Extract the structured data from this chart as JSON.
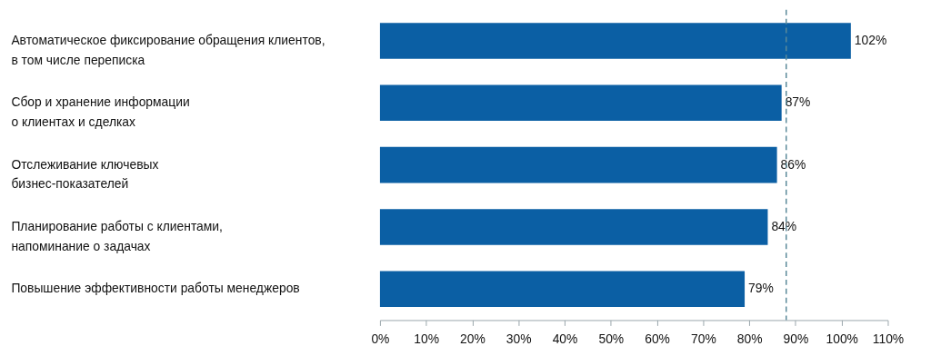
{
  "chart_data": {
    "type": "bar",
    "orientation": "horizontal",
    "categories": [
      "Автоматическое фиксирование обращения клиентов,\n в том числе переписка",
      "Сбор и хранение информации\nо клиентах и сделках",
      "Отслеживание ключевых\nбизнес-показателей",
      "Планирование работы с клиентами,\nнапоминание о задачах",
      "Повышение эффективности работы менеджеров"
    ],
    "values": [
      102,
      87,
      86,
      84,
      79
    ],
    "value_labels": [
      "102%",
      "87%",
      "86%",
      "84%",
      "79%"
    ],
    "color": "#0b5fa4",
    "xlim": [
      0,
      110
    ],
    "xticks": [
      {
        "value": 0,
        "label": "0%"
      },
      {
        "value": 10,
        "label": "10%"
      },
      {
        "value": 20,
        "label": "20%"
      },
      {
        "value": 30,
        "label": "30%"
      },
      {
        "value": 40,
        "label": "40%"
      },
      {
        "value": 50,
        "label": "50%"
      },
      {
        "value": 60,
        "label": "60%"
      },
      {
        "value": 70,
        "label": "70%"
      },
      {
        "value": 80,
        "label": "80%"
      },
      {
        "value": 90,
        "label": "90%"
      },
      {
        "value": 100,
        "label": "100%"
      },
      {
        "value": 110,
        "label": "110%"
      }
    ],
    "ref_lines": [
      {
        "axis": "x",
        "value": 88,
        "color": "#5b8a9a",
        "line_style": "dashed"
      }
    ],
    "grid": false
  }
}
